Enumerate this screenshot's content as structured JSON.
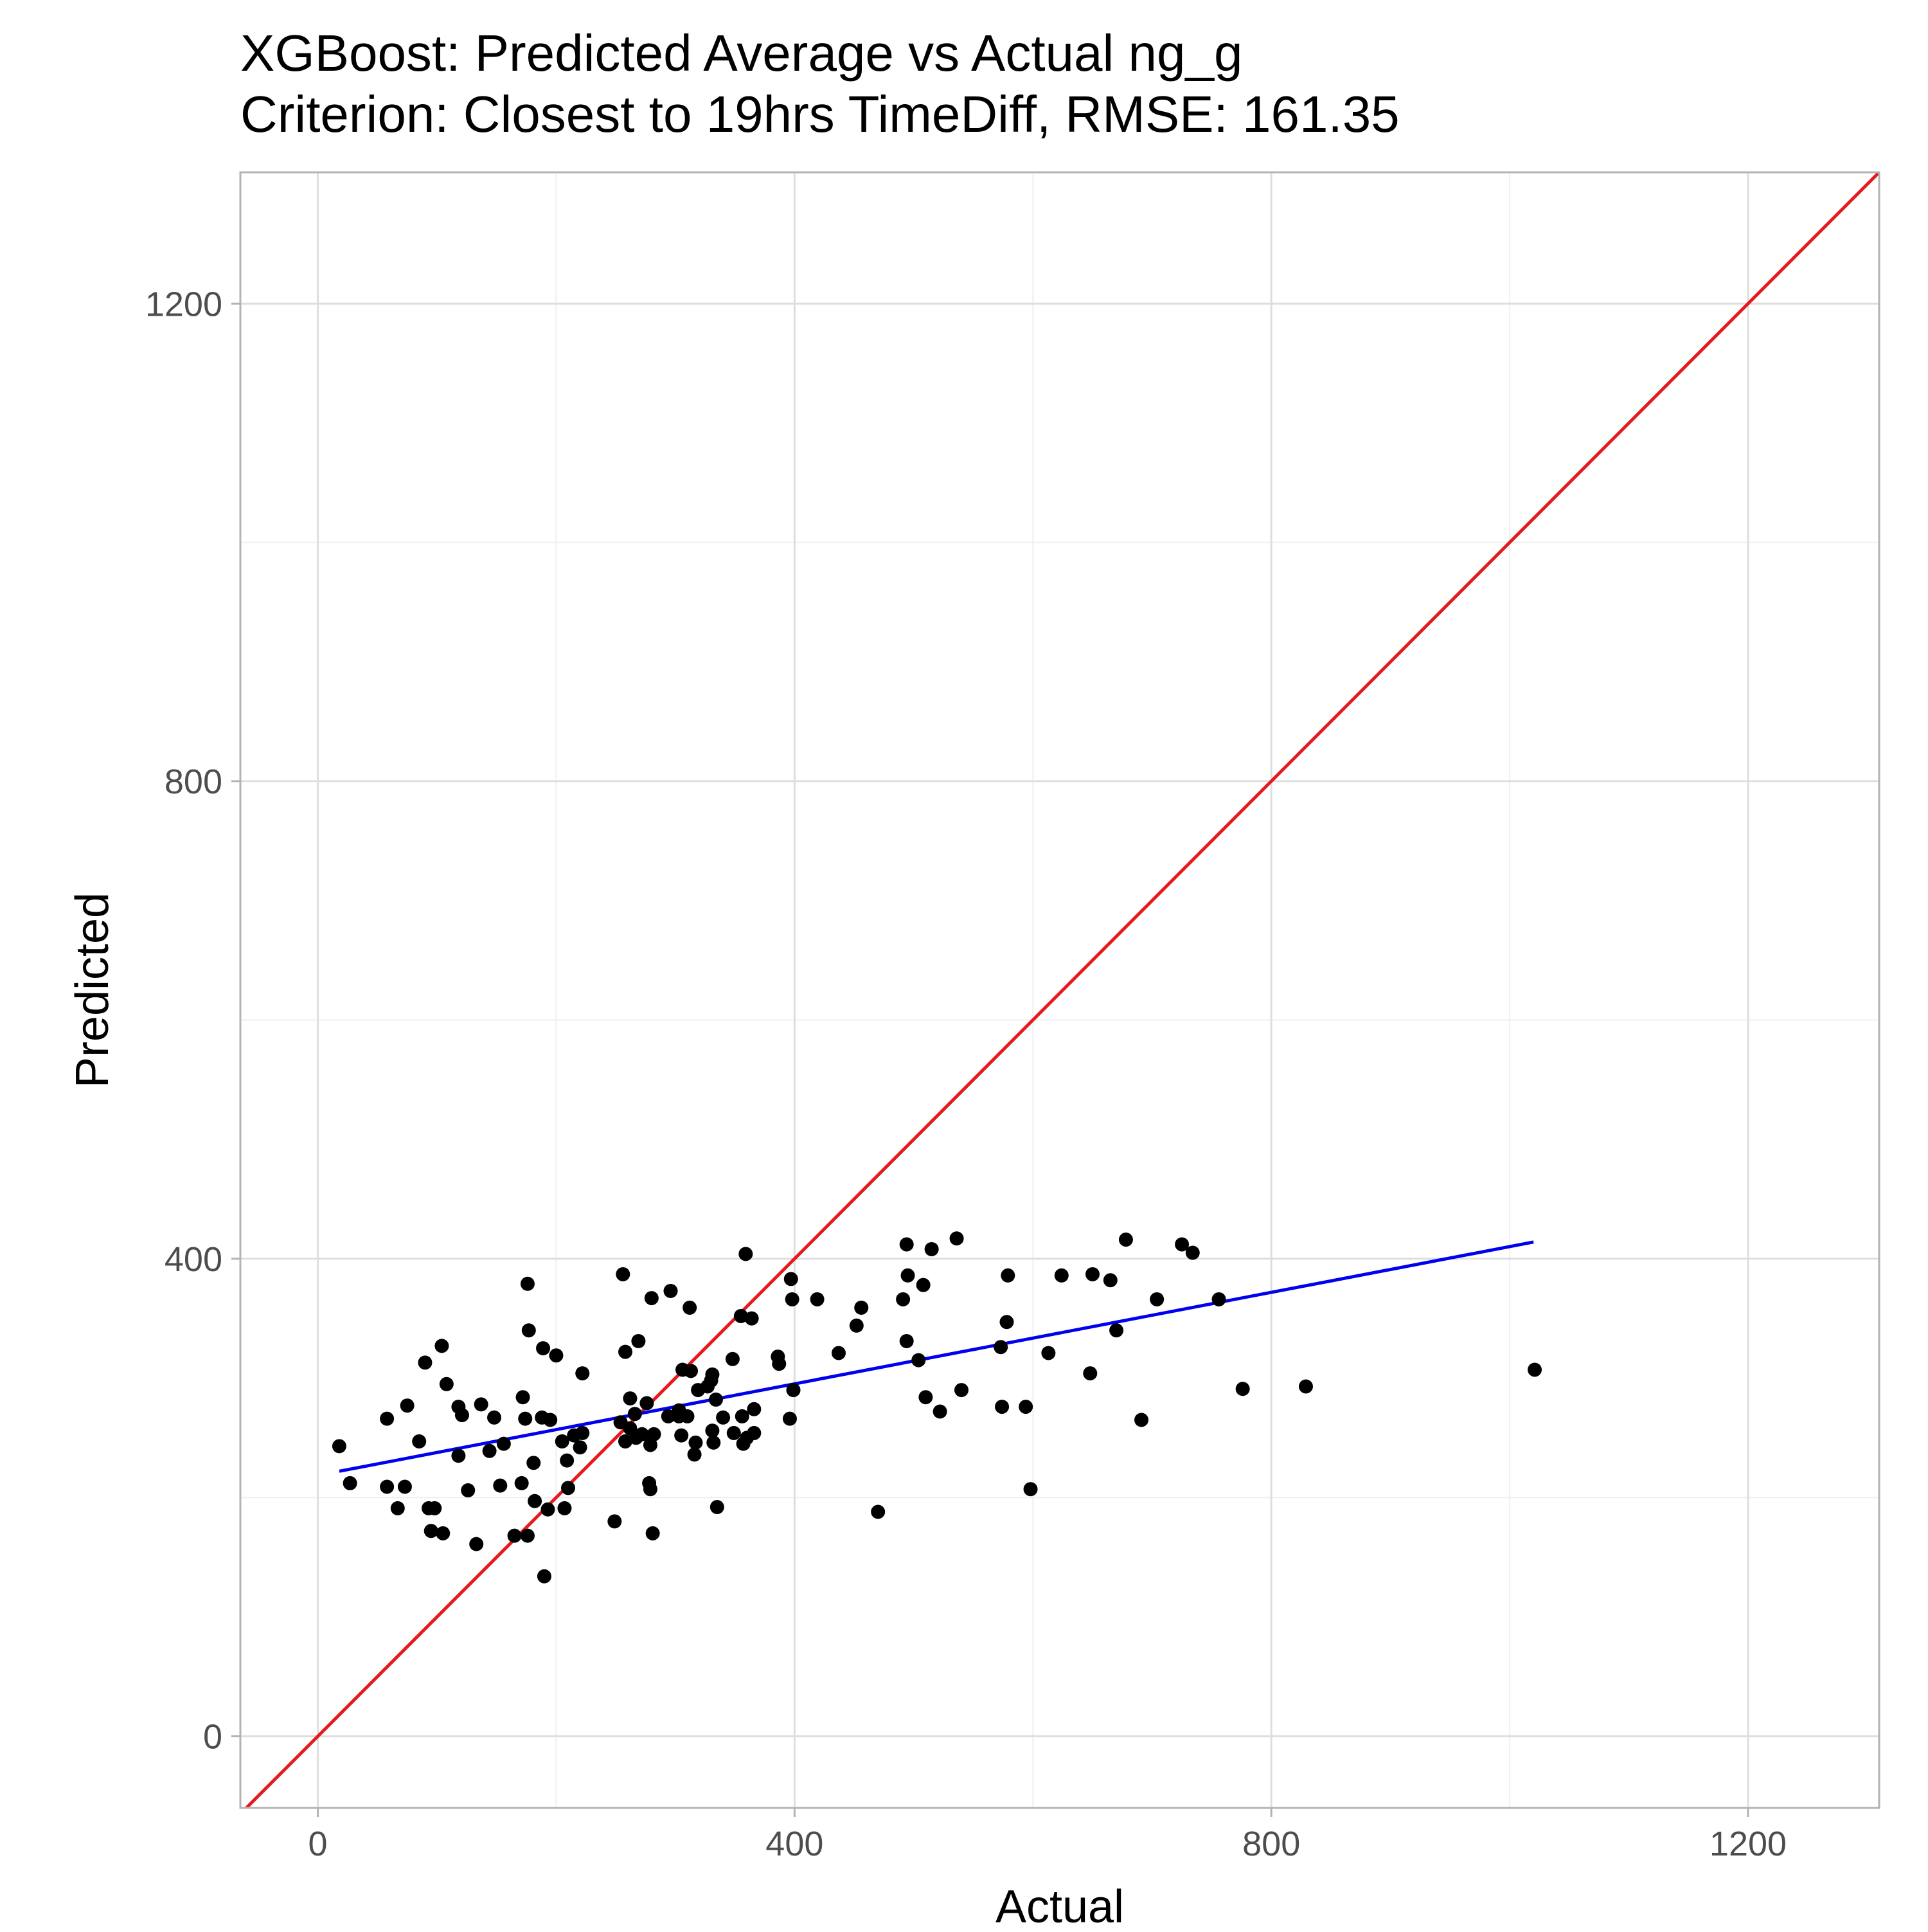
{
  "chart_data": {
    "type": "scatter",
    "title": "XGBoost: Predicted Average vs Actual ng_g",
    "subtitle": "Criterion: Closest to 19hrs TimeDiff, RMSE: 161.35",
    "xlabel": "Actual",
    "ylabel": "Predicted",
    "xlim": [
      -65,
      1310
    ],
    "ylim": [
      -60,
      1310
    ],
    "x_ticks": [
      0,
      400,
      800,
      1200
    ],
    "y_ticks": [
      0,
      400,
      800,
      1200
    ],
    "grid": true,
    "legend": "none",
    "colors": {
      "points": "#000000",
      "identity_line": "#e41a1c",
      "fit_line": "#0000ee",
      "grid_major": "#dedede",
      "grid_minor": "#efefef",
      "panel_border": "#b3b3b3"
    },
    "reference_line": {
      "name": "",
      "slope": 1,
      "intercept": 0
    },
    "fit_line": {
      "name": "",
      "x": [
        18,
        1020
      ],
      "y": [
        222,
        414
      ]
    },
    "points": [
      {
        "x": 18,
        "y": 243
      },
      {
        "x": 27,
        "y": 212
      },
      {
        "x": 58,
        "y": 266
      },
      {
        "x": 58,
        "y": 209
      },
      {
        "x": 67,
        "y": 191
      },
      {
        "x": 73,
        "y": 209
      },
      {
        "x": 75,
        "y": 277
      },
      {
        "x": 85,
        "y": 247
      },
      {
        "x": 90,
        "y": 313
      },
      {
        "x": 93,
        "y": 191
      },
      {
        "x": 95,
        "y": 172
      },
      {
        "x": 98,
        "y": 191
      },
      {
        "x": 104,
        "y": 327
      },
      {
        "x": 105,
        "y": 170
      },
      {
        "x": 108,
        "y": 295
      },
      {
        "x": 118,
        "y": 276
      },
      {
        "x": 118,
        "y": 235
      },
      {
        "x": 121,
        "y": 269
      },
      {
        "x": 126,
        "y": 206
      },
      {
        "x": 133,
        "y": 161
      },
      {
        "x": 137,
        "y": 278
      },
      {
        "x": 144,
        "y": 239
      },
      {
        "x": 148,
        "y": 267
      },
      {
        "x": 153,
        "y": 210
      },
      {
        "x": 156,
        "y": 245
      },
      {
        "x": 165,
        "y": 168
      },
      {
        "x": 171,
        "y": 212
      },
      {
        "x": 172,
        "y": 284
      },
      {
        "x": 174,
        "y": 266
      },
      {
        "x": 176,
        "y": 379
      },
      {
        "x": 176,
        "y": 168
      },
      {
        "x": 177,
        "y": 340
      },
      {
        "x": 181,
        "y": 229
      },
      {
        "x": 182,
        "y": 197
      },
      {
        "x": 188,
        "y": 267
      },
      {
        "x": 189,
        "y": 325
      },
      {
        "x": 190,
        "y": 134
      },
      {
        "x": 193,
        "y": 190
      },
      {
        "x": 195,
        "y": 265
      },
      {
        "x": 200,
        "y": 319
      },
      {
        "x": 205,
        "y": 247
      },
      {
        "x": 207,
        "y": 191
      },
      {
        "x": 209,
        "y": 231
      },
      {
        "x": 210,
        "y": 208
      },
      {
        "x": 215,
        "y": 252
      },
      {
        "x": 220,
        "y": 242
      },
      {
        "x": 222,
        "y": 254
      },
      {
        "x": 222,
        "y": 304
      },
      {
        "x": 249,
        "y": 180
      },
      {
        "x": 254,
        "y": 263
      },
      {
        "x": 256,
        "y": 387
      },
      {
        "x": 258,
        "y": 247
      },
      {
        "x": 262,
        "y": 258
      },
      {
        "x": 258,
        "y": 322
      },
      {
        "x": 262,
        "y": 283
      },
      {
        "x": 266,
        "y": 270
      },
      {
        "x": 267,
        "y": 250
      },
      {
        "x": 269,
        "y": 331
      },
      {
        "x": 272,
        "y": 253
      },
      {
        "x": 276,
        "y": 279
      },
      {
        "x": 278,
        "y": 212
      },
      {
        "x": 279,
        "y": 207
      },
      {
        "x": 279,
        "y": 244
      },
      {
        "x": 280,
        "y": 367
      },
      {
        "x": 281,
        "y": 170
      },
      {
        "x": 282,
        "y": 253
      },
      {
        "x": 294,
        "y": 268
      },
      {
        "x": 296,
        "y": 373
      },
      {
        "x": 303,
        "y": 273
      },
      {
        "x": 303,
        "y": 268
      },
      {
        "x": 305,
        "y": 252
      },
      {
        "x": 306,
        "y": 307
      },
      {
        "x": 310,
        "y": 268
      },
      {
        "x": 312,
        "y": 359
      },
      {
        "x": 313,
        "y": 306
      },
      {
        "x": 316,
        "y": 236
      },
      {
        "x": 317,
        "y": 246
      },
      {
        "x": 319,
        "y": 290
      },
      {
        "x": 327,
        "y": 293
      },
      {
        "x": 330,
        "y": 298
      },
      {
        "x": 331,
        "y": 303
      },
      {
        "x": 331,
        "y": 256
      },
      {
        "x": 332,
        "y": 246
      },
      {
        "x": 334,
        "y": 282
      },
      {
        "x": 335,
        "y": 192
      },
      {
        "x": 340,
        "y": 267
      },
      {
        "x": 348,
        "y": 316
      },
      {
        "x": 349,
        "y": 254
      },
      {
        "x": 355,
        "y": 352
      },
      {
        "x": 356,
        "y": 268
      },
      {
        "x": 357,
        "y": 245
      },
      {
        "x": 359,
        "y": 404
      },
      {
        "x": 360,
        "y": 250
      },
      {
        "x": 364,
        "y": 350
      },
      {
        "x": 366,
        "y": 254
      },
      {
        "x": 366,
        "y": 274
      },
      {
        "x": 386,
        "y": 318
      },
      {
        "x": 387,
        "y": 312
      },
      {
        "x": 396,
        "y": 266
      },
      {
        "x": 397,
        "y": 383
      },
      {
        "x": 398,
        "y": 366
      },
      {
        "x": 399,
        "y": 290
      },
      {
        "x": 419,
        "y": 366
      },
      {
        "x": 437,
        "y": 321
      },
      {
        "x": 452,
        "y": 344
      },
      {
        "x": 456,
        "y": 359
      },
      {
        "x": 470,
        "y": 188
      },
      {
        "x": 491,
        "y": 366
      },
      {
        "x": 494,
        "y": 412
      },
      {
        "x": 494,
        "y": 331
      },
      {
        "x": 495,
        "y": 386
      },
      {
        "x": 504,
        "y": 315
      },
      {
        "x": 508,
        "y": 378
      },
      {
        "x": 510,
        "y": 284
      },
      {
        "x": 515,
        "y": 408
      },
      {
        "x": 522,
        "y": 272
      },
      {
        "x": 536,
        "y": 417
      },
      {
        "x": 540,
        "y": 290
      },
      {
        "x": 573,
        "y": 326
      },
      {
        "x": 574,
        "y": 276
      },
      {
        "x": 578,
        "y": 347
      },
      {
        "x": 579,
        "y": 386
      },
      {
        "x": 594,
        "y": 276
      },
      {
        "x": 598,
        "y": 207
      },
      {
        "x": 613,
        "y": 321
      },
      {
        "x": 624,
        "y": 386
      },
      {
        "x": 648,
        "y": 304
      },
      {
        "x": 650,
        "y": 387
      },
      {
        "x": 665,
        "y": 382
      },
      {
        "x": 670,
        "y": 340
      },
      {
        "x": 678,
        "y": 416
      },
      {
        "x": 691,
        "y": 265
      },
      {
        "x": 704,
        "y": 366
      },
      {
        "x": 725,
        "y": 412
      },
      {
        "x": 734,
        "y": 405
      },
      {
        "x": 756,
        "y": 366
      },
      {
        "x": 776,
        "y": 291
      },
      {
        "x": 829,
        "y": 293
      },
      {
        "x": 1021,
        "y": 307
      }
    ]
  }
}
